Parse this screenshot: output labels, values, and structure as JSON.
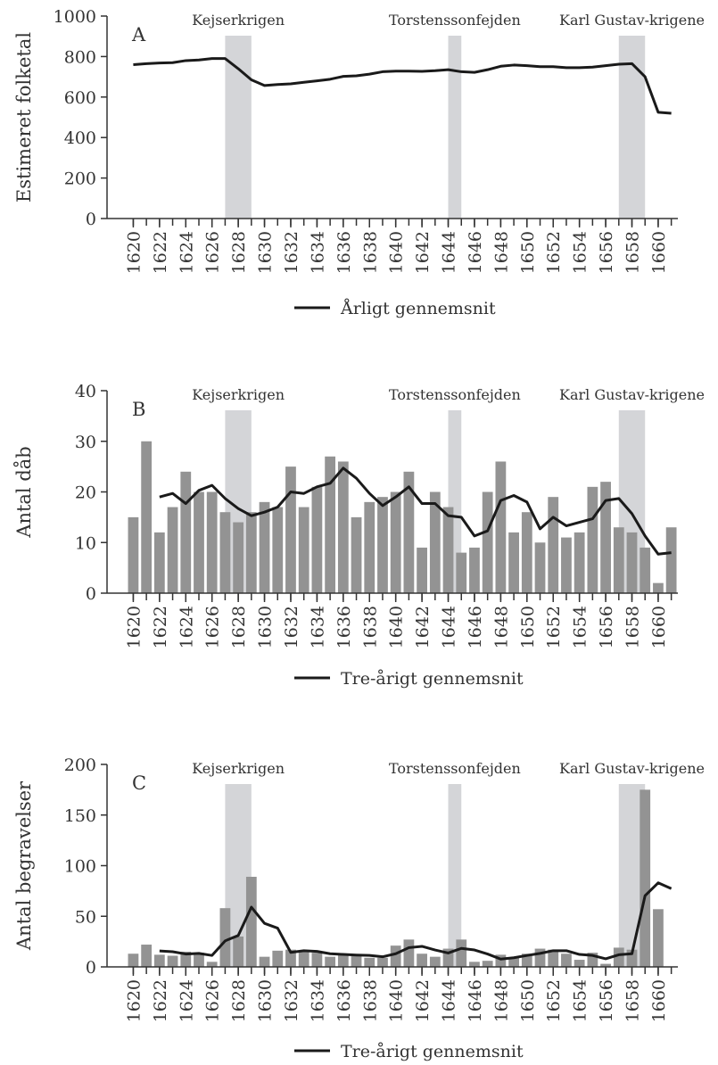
{
  "chart_data": [
    {
      "type": "line",
      "panel_label": "A",
      "ylabel": "Estimeret folketal",
      "x": [
        1620,
        1621,
        1622,
        1623,
        1624,
        1625,
        1626,
        1627,
        1628,
        1629,
        1630,
        1631,
        1632,
        1633,
        1634,
        1635,
        1636,
        1637,
        1638,
        1639,
        1640,
        1641,
        1642,
        1643,
        1644,
        1645,
        1646,
        1647,
        1648,
        1649,
        1650,
        1651,
        1652,
        1653,
        1654,
        1655,
        1656,
        1657,
        1658,
        1659,
        1660,
        1661
      ],
      "xlim": [
        1618,
        1661.5
      ],
      "xticks": [
        1620,
        1622,
        1624,
        1626,
        1628,
        1630,
        1632,
        1634,
        1636,
        1638,
        1640,
        1642,
        1644,
        1646,
        1648,
        1650,
        1652,
        1654,
        1656,
        1658,
        1660
      ],
      "ylim": [
        0,
        1000
      ],
      "yticks": [
        0,
        200,
        400,
        600,
        800,
        1000
      ],
      "series": [
        {
          "name": "Årligt gennemsnit",
          "type": "line",
          "color": "#1a1a1a",
          "values": [
            760,
            765,
            768,
            770,
            780,
            783,
            790,
            790,
            740,
            685,
            657,
            662,
            665,
            673,
            680,
            688,
            702,
            705,
            713,
            725,
            728,
            728,
            727,
            730,
            735,
            725,
            722,
            735,
            752,
            758,
            755,
            750,
            750,
            745,
            745,
            748,
            755,
            762,
            765,
            700,
            525,
            520
          ]
        }
      ],
      "spans": [
        {
          "label": "Kejserkrigen",
          "start": 1627,
          "end": 1629
        },
        {
          "label": "Torstenssonfejden",
          "start": 1644,
          "end": 1645
        },
        {
          "label": "Karl Gustav-krigene",
          "start": 1657,
          "end": 1659
        }
      ],
      "span_color": "#d4d5d8"
    },
    {
      "type": "bar",
      "panel_label": "B",
      "ylabel": "Antal dåb",
      "x": [
        1620,
        1621,
        1622,
        1623,
        1624,
        1625,
        1626,
        1627,
        1628,
        1629,
        1630,
        1631,
        1632,
        1633,
        1634,
        1635,
        1636,
        1637,
        1638,
        1639,
        1640,
        1641,
        1642,
        1643,
        1644,
        1645,
        1646,
        1647,
        1648,
        1649,
        1650,
        1651,
        1652,
        1653,
        1654,
        1655,
        1656,
        1657,
        1658,
        1659,
        1660,
        1661
      ],
      "xlim": [
        1618,
        1661.5
      ],
      "xticks": [
        1620,
        1622,
        1624,
        1626,
        1628,
        1630,
        1632,
        1634,
        1636,
        1638,
        1640,
        1642,
        1644,
        1646,
        1648,
        1650,
        1652,
        1654,
        1656,
        1658,
        1660
      ],
      "ylim": [
        0,
        40
      ],
      "yticks": [
        0,
        10,
        20,
        30,
        40
      ],
      "series": [
        {
          "type": "bar",
          "color": "#939393",
          "values": [
            15,
            30,
            12,
            17,
            24,
            20,
            20,
            16,
            14,
            16,
            18,
            17,
            25,
            17,
            21,
            27,
            26,
            15,
            18,
            19,
            20,
            24,
            9,
            20,
            17,
            8,
            9,
            20,
            26,
            12,
            16,
            10,
            19,
            11,
            12,
            21,
            22,
            13,
            12,
            9,
            2,
            13
          ]
        },
        {
          "name": "Tre-årigt gennemsnit",
          "type": "line",
          "color": "#1a1a1a",
          "values": [
            null,
            null,
            19.0,
            19.7,
            17.7,
            20.3,
            21.3,
            18.7,
            16.7,
            15.3,
            16.0,
            17.0,
            20.0,
            19.7,
            21.0,
            21.7,
            24.7,
            22.7,
            19.7,
            17.3,
            19.0,
            21.0,
            17.7,
            17.7,
            15.3,
            15.0,
            11.3,
            12.3,
            18.3,
            19.3,
            18.0,
            12.7,
            15.0,
            13.3,
            14.0,
            14.7,
            18.3,
            18.7,
            15.7,
            11.3,
            7.7,
            8.0
          ]
        }
      ],
      "spans": [
        {
          "label": "Kejserkrigen",
          "start": 1627,
          "end": 1629
        },
        {
          "label": "Torstenssonfejden",
          "start": 1644,
          "end": 1645
        },
        {
          "label": "Karl Gustav-krigene",
          "start": 1657,
          "end": 1659
        }
      ],
      "span_color": "#d4d5d8"
    },
    {
      "type": "bar",
      "panel_label": "C",
      "ylabel": "Antal begravelser",
      "x": [
        1620,
        1621,
        1622,
        1623,
        1624,
        1625,
        1626,
        1627,
        1628,
        1629,
        1630,
        1631,
        1632,
        1633,
        1634,
        1635,
        1636,
        1637,
        1638,
        1639,
        1640,
        1641,
        1642,
        1643,
        1644,
        1645,
        1646,
        1647,
        1648,
        1649,
        1650,
        1651,
        1652,
        1653,
        1654,
        1655,
        1656,
        1657,
        1658,
        1659,
        1660,
        1661
      ],
      "xlim": [
        1618,
        1661.5
      ],
      "xticks": [
        1620,
        1622,
        1624,
        1626,
        1628,
        1630,
        1632,
        1634,
        1636,
        1638,
        1640,
        1642,
        1644,
        1646,
        1648,
        1650,
        1652,
        1654,
        1656,
        1658,
        1660
      ],
      "ylim": [
        0,
        200
      ],
      "yticks": [
        0,
        50,
        100,
        150,
        200
      ],
      "series": [
        {
          "type": "bar",
          "color": "#939393",
          "values": [
            13,
            22,
            12,
            11,
            15,
            14,
            5,
            58,
            30,
            89,
            10,
            16,
            17,
            15,
            14,
            10,
            13,
            12,
            9,
            9,
            21,
            27,
            13,
            10,
            18,
            27,
            5,
            6,
            12,
            9,
            13,
            18,
            17,
            13,
            7,
            14,
            3,
            19,
            17,
            175,
            57,
            0
          ]
        },
        {
          "name": "Tre-årigt gennemsnit",
          "type": "line",
          "color": "#1a1a1a",
          "values": [
            null,
            null,
            15.7,
            15.0,
            12.7,
            13.3,
            11.3,
            25.7,
            31.0,
            59.0,
            43.0,
            38.3,
            14.3,
            16.0,
            15.3,
            13.0,
            12.3,
            11.7,
            11.3,
            10.0,
            13.0,
            19.0,
            20.3,
            16.7,
            13.7,
            18.3,
            16.7,
            12.7,
            7.7,
            9.0,
            11.3,
            13.3,
            16.0,
            16.0,
            12.3,
            11.3,
            8.0,
            12.0,
            13.0,
            70.3,
            83.0,
            77.3
          ]
        }
      ],
      "spans": [
        {
          "label": "Kejserkrigen",
          "start": 1627,
          "end": 1629
        },
        {
          "label": "Torstenssonfejden",
          "start": 1644,
          "end": 1645
        },
        {
          "label": "Karl Gustav-krigene",
          "start": 1657,
          "end": 1659
        }
      ],
      "span_color": "#d4d5d8"
    }
  ]
}
